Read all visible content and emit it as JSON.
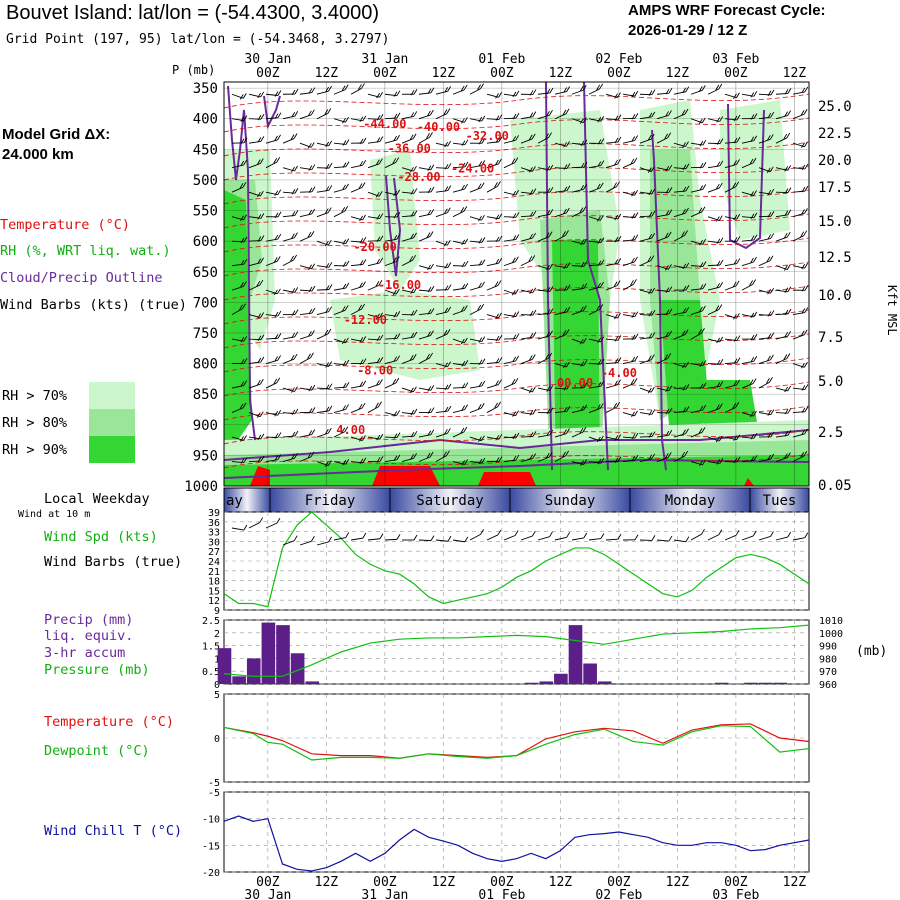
{
  "header": {
    "title": "Bouvet Island:  lat/lon = (-54.4300, 3.4000)",
    "grid_point": "Grid Point (197, 95) lat/lon = (-54.3468, 3.2797)",
    "cycle_title": "AMPS WRF Forecast Cycle:",
    "cycle_value": "2026-01-29 / 12  Z"
  },
  "left_panel": {
    "model_grid_label": "Model Grid ΔX:",
    "model_grid_value": " 24.000 km",
    "legend_temperature": "Temperature (°C)",
    "legend_rh": "RH (%, WRT liq. wat.)",
    "legend_cloud": "Cloud/Precip Outline",
    "legend_wind": "Wind Barbs (kts) (true)",
    "rh_levels": [
      {
        "label": "RH > 70%",
        "color": "#ccf7cc"
      },
      {
        "label": "RH > 80%",
        "color": "#99e699"
      },
      {
        "label": "RH > 90%",
        "color": "#33d633"
      }
    ],
    "local_weekday": "Local Weekday",
    "wind_10m": "Wind at 10 m",
    "wind_spd_label": "Wind Spd (kts)",
    "wind_barbs_label": "Wind Barbs (true)",
    "precip_label": "Precip (mm)",
    "precip_sub1": "liq. equiv.",
    "precip_sub2": "3-hr accum",
    "pressure_label": "Pressure (mb)",
    "temp_label": "Temperature (°C)",
    "dew_label": "Dewpoint (°C)",
    "chill_label": "Wind Chill T (°C)"
  },
  "colors": {
    "temperature": "#e01010",
    "dewpoint": "#10c010",
    "cloud": "#6a2a9a",
    "precip": "#5c1f8a",
    "chill": "#1010a0",
    "wind_speed": "#10c010",
    "pressure": "#10c010"
  },
  "chart_data": [
    {
      "type": "area",
      "name": "time-height cross section",
      "ylabel": "P (mb)",
      "ylabel_right": "Kft MSL",
      "pressure_ticks": [
        350,
        400,
        450,
        500,
        550,
        600,
        650,
        700,
        750,
        800,
        850,
        900,
        950,
        1000
      ],
      "ylim": [
        340,
        1000
      ],
      "height_ticks": [
        "25.0",
        "22.5",
        "20.0",
        "17.5",
        "15.0",
        "12.5",
        "10.0",
        "7.5",
        "5.0",
        "2.5",
        "0.05"
      ],
      "time_ticks": [
        "00Z",
        "12Z",
        "00Z",
        "12Z",
        "00Z",
        "12Z",
        "00Z",
        "12Z",
        "00Z",
        "12Z"
      ],
      "date_ticks": [
        "30 Jan",
        "31 Jan",
        "01 Feb",
        "02 Feb",
        "03 Feb"
      ],
      "forecast_hours_range": [
        0,
        120
      ],
      "temperature_contour_labels": [
        {
          "text": "-44.00",
          "h": 33,
          "p": 415
        },
        {
          "text": "-40.00",
          "h": 44,
          "p": 420
        },
        {
          "text": "-32.00",
          "h": 54,
          "p": 435
        },
        {
          "text": "-36.00",
          "h": 38,
          "p": 455
        },
        {
          "text": "-24.00",
          "h": 51,
          "p": 488
        },
        {
          "text": "-28.00",
          "h": 40,
          "p": 502
        },
        {
          "text": "-20.00",
          "h": 31,
          "p": 616
        },
        {
          "text": "-16.00",
          "h": 36,
          "p": 678
        },
        {
          "text": "-12.00",
          "h": 29,
          "p": 735
        },
        {
          "text": "-8.00",
          "h": 31,
          "p": 818
        },
        {
          "text": "-4.00",
          "h": 81,
          "p": 822
        },
        {
          "text": "00.00",
          "h": 72,
          "p": 838
        },
        {
          "text": "4.00",
          "h": 26,
          "p": 915
        }
      ],
      "rh_region_note": "RH > 70/80/90 shading; saturated layers near fcst hours 0-6, 58-66, 72-90"
    },
    {
      "type": "line",
      "name": "wind speed 10 m",
      "ylabel": "Wind Spd (kts)",
      "ylim": [
        9,
        39
      ],
      "yticks": [
        9,
        12,
        15,
        18,
        21,
        24,
        27,
        30,
        33,
        36,
        39
      ],
      "x": [
        0,
        3,
        6,
        9,
        12,
        15,
        18,
        21,
        24,
        27,
        30,
        33,
        36,
        39,
        42,
        45,
        48,
        51,
        54,
        57,
        60,
        63,
        66,
        69,
        72,
        75,
        78,
        81,
        84,
        87,
        90,
        93,
        96,
        99,
        102,
        105,
        108,
        111,
        114,
        117,
        120
      ],
      "values": [
        14,
        11,
        11,
        10,
        28,
        35,
        39,
        35,
        31,
        26,
        23,
        21,
        20,
        17,
        13,
        11,
        12,
        13,
        14,
        16,
        19,
        21,
        24,
        26,
        28,
        28,
        26,
        23,
        20,
        17,
        14,
        13,
        15,
        19,
        22,
        25,
        26,
        25,
        23,
        20,
        17
      ]
    },
    {
      "type": "bar",
      "name": "precip and pressure",
      "ylabel": "Precip (mm)",
      "ylim": [
        0,
        2.5
      ],
      "yticks": [
        0,
        0.5,
        1,
        1.5,
        2,
        2.5
      ],
      "bar_hours": [
        0,
        3,
        6,
        9,
        12,
        15,
        18,
        21,
        63,
        66,
        69,
        72,
        75,
        78,
        102,
        105,
        108,
        111,
        114,
        117
      ],
      "bar_values": [
        1.4,
        0.3,
        1.0,
        2.4,
        2.3,
        1.2,
        0.1,
        0.0,
        0.05,
        0.1,
        0.4,
        2.3,
        0.8,
        0.1,
        0.05,
        0.02,
        0.05,
        0.05,
        0.05,
        0.0
      ],
      "pressure_ylim": [
        960,
        1010
      ],
      "pressure_ticks": [
        960,
        970,
        980,
        990,
        1000,
        1010
      ],
      "pressure_x": [
        0,
        6,
        12,
        18,
        24,
        30,
        36,
        42,
        48,
        54,
        60,
        66,
        72,
        78,
        84,
        90,
        96,
        102,
        108,
        114,
        120
      ],
      "pressure_values": [
        968,
        966,
        966,
        975,
        985,
        992,
        995,
        996,
        996,
        997,
        998,
        997,
        994,
        991,
        995,
        999,
        1000,
        1001,
        1003,
        1004,
        1006
      ]
    },
    {
      "type": "line",
      "name": "temperature and dewpoint",
      "ylabel": "Temperature (°C)",
      "ylim": [
        -5,
        5
      ],
      "yticks": [
        -5,
        0,
        5
      ],
      "x": [
        0,
        6,
        9,
        12,
        18,
        24,
        30,
        36,
        42,
        48,
        54,
        60,
        66,
        72,
        78,
        84,
        90,
        96,
        102,
        108,
        114,
        120
      ],
      "temperature": [
        1.2,
        0.6,
        0.2,
        -0.3,
        -1.8,
        -2.0,
        -2.0,
        -2.3,
        -1.8,
        -2.0,
        -2.2,
        -2.0,
        -0.1,
        0.7,
        1.1,
        0.8,
        -0.6,
        0.9,
        1.5,
        1.6,
        0.0,
        -0.4
      ],
      "dewpoint": [
        1.2,
        0.5,
        -0.5,
        -0.7,
        -2.5,
        -2.2,
        -2.2,
        -2.3,
        -1.8,
        -2.1,
        -2.3,
        -2.0,
        -0.7,
        0.4,
        1.0,
        -0.4,
        -0.8,
        0.7,
        1.4,
        1.3,
        -1.6,
        -1.2
      ]
    },
    {
      "type": "line",
      "name": "wind chill",
      "ylabel": "Wind Chill T (°C)",
      "ylim": [
        -20,
        -5
      ],
      "yticks": [
        -5,
        -10,
        -15,
        -20
      ],
      "x": [
        0,
        3,
        6,
        9,
        12,
        15,
        18,
        21,
        24,
        27,
        30,
        33,
        36,
        39,
        42,
        45,
        48,
        51,
        54,
        57,
        60,
        63,
        66,
        69,
        72,
        75,
        78,
        81,
        84,
        87,
        90,
        93,
        96,
        99,
        102,
        105,
        108,
        111,
        114,
        117,
        120
      ],
      "values": [
        -10.5,
        -9.5,
        -10.5,
        -10.0,
        -18.5,
        -19.5,
        -19.8,
        -19.2,
        -18.0,
        -16.5,
        -18.0,
        -16.5,
        -14.0,
        -12.0,
        -13.5,
        -14.2,
        -15.0,
        -16.5,
        -17.5,
        -18.0,
        -17.5,
        -16.5,
        -17.5,
        -16.0,
        -13.5,
        -13.0,
        -12.8,
        -12.5,
        -13.0,
        -13.5,
        -14.5,
        -15.0,
        -15.0,
        -14.5,
        -14.5,
        -15.0,
        -16.0,
        -15.8,
        -15.0,
        -14.5,
        -14.0
      ]
    }
  ],
  "weekday_band": {
    "labels": [
      "ay",
      "Friday",
      "Saturday",
      "Sunday",
      "Monday",
      "Tues"
    ]
  },
  "units": {
    "pressure_unit": "(mb)"
  }
}
